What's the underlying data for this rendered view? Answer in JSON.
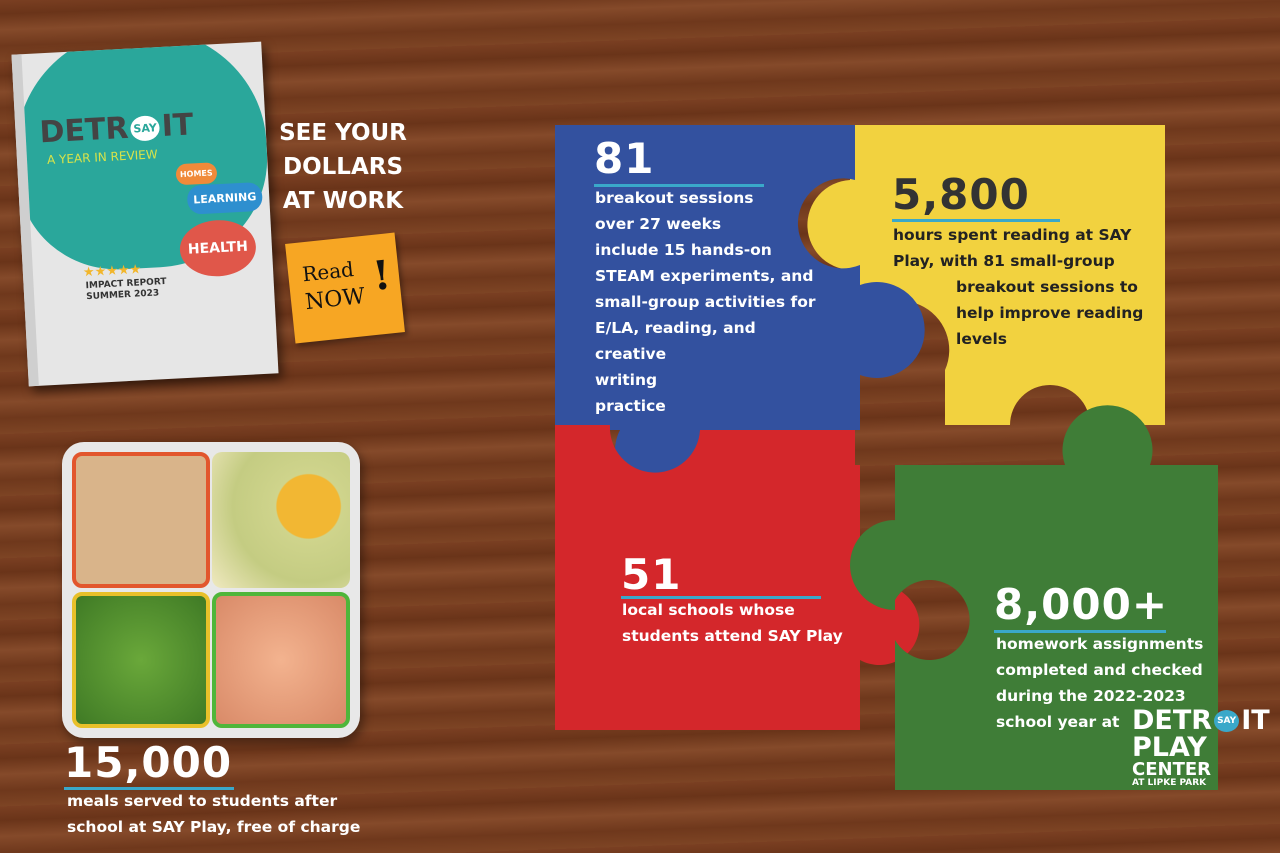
{
  "book": {
    "title_left": "DETR",
    "title_say": "SAY",
    "title_right": "IT",
    "subtitle": "A YEAR IN REVIEW",
    "bubbles": [
      "HOMES",
      "LEARNING",
      "HEALTH"
    ],
    "stars": 5,
    "report_line1": "IMPACT REPORT",
    "report_line2": "SUMMER 2023"
  },
  "headline": [
    "SEE YOUR",
    "DOLLARS",
    "AT WORK"
  ],
  "sticky_note": {
    "line1": "Read",
    "line2": "NOW",
    "mark": "!"
  },
  "stats": {
    "breakout": {
      "number": "81",
      "lines": [
        "breakout sessions",
        "over 27 weeks",
        "include 15 hands-on",
        "STEAM experiments, and",
        "small-group activities for",
        "E/LA, reading, and",
        "creative",
        "writing",
        "practice"
      ]
    },
    "reading": {
      "number": "5,800",
      "lines": [
        "hours spent reading at SAY",
        "Play, with 81 small-group",
        "breakout sessions to",
        "help improve reading",
        "levels"
      ]
    },
    "schools": {
      "number": "51",
      "lines": [
        "local schools whose",
        "students attend SAY Play"
      ]
    },
    "homework": {
      "number": "8,000+",
      "lines": [
        "homework assignments",
        "completed and checked",
        "during the 2022-2023",
        "school year at"
      ]
    },
    "meals": {
      "number": "15,000",
      "lines": [
        "meals served to students after",
        "school at SAY Play, free of charge"
      ]
    }
  },
  "logo": {
    "line1_left": "DETR",
    "say": "SAY",
    "line1_right": "IT",
    "line2": "PLAY",
    "line3": "CENTER",
    "line4": "AT LIPKE PARK"
  },
  "colors": {
    "blue": "#33519f",
    "yellow": "#f2d23f",
    "red": "#d4272b",
    "green": "#3f7d37",
    "teal": "#2aa79b",
    "accent": "#3aa8c9"
  }
}
